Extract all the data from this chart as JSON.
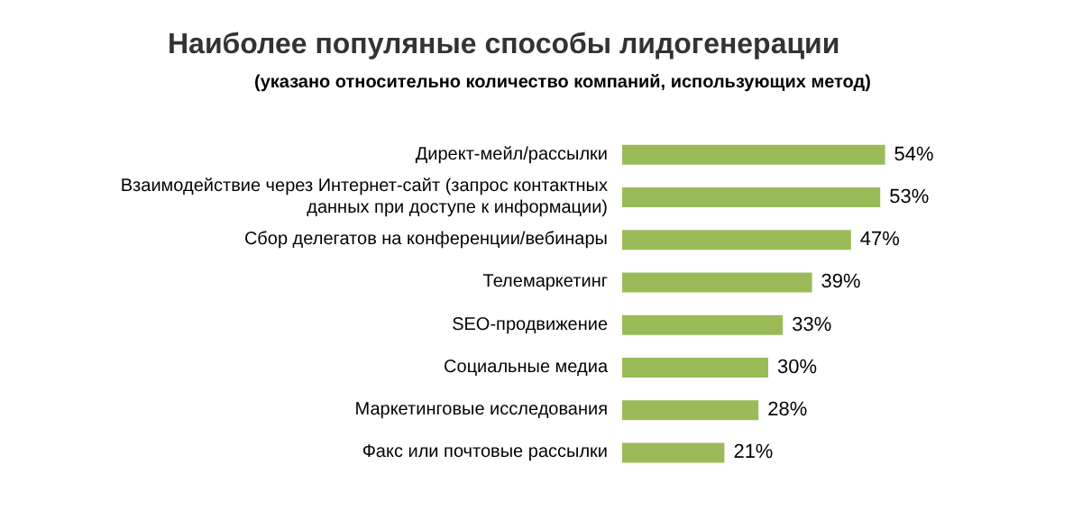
{
  "chart_data": {
    "type": "bar",
    "orientation": "horizontal",
    "title": "Наиболее популяные способы лидогенерации",
    "subtitle": "(указано относительно количество компаний, использующих метод)",
    "categories": [
      "Директ-мейл/рассылки",
      "Взаимодействие через Интернет-сайт (запрос контактных\nданных при доступе к информации)",
      "Сбор делегатов на конференции/вебинары",
      "Телемаркетинг",
      "SEO-продвижение",
      "Социальные медиа",
      "Маркетинговые исследования",
      "Факс или почтовые рассылки"
    ],
    "values": [
      54,
      53,
      47,
      39,
      33,
      30,
      28,
      21
    ],
    "value_labels": [
      "54%",
      "53%",
      "47%",
      "39%",
      "33%",
      "30%",
      "28%",
      "21%"
    ],
    "color": "#9bbb59"
  }
}
